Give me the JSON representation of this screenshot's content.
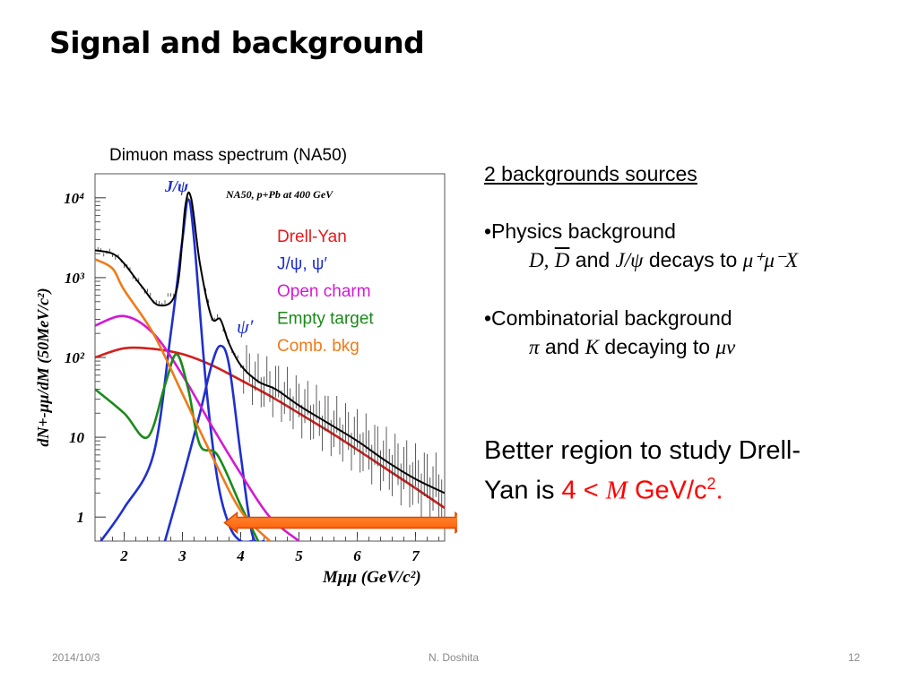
{
  "slide": {
    "title": "Signal and background",
    "footer_date": "2014/10/3",
    "footer_author": "N. Doshita",
    "footer_page": "12"
  },
  "chart_caption": "Dimuon mass spectrum (NA50)",
  "right_panel": {
    "heading": "2 backgrounds sources",
    "physics_bullet": "•Physics background",
    "physics_D": "D,",
    "physics_Dbar": "D",
    "physics_and": "and",
    "physics_jpsi": "J/ψ",
    "physics_decays": "decays to",
    "physics_mumux": "μ⁺μ⁻X",
    "comb_bullet": "•Combinatorial background",
    "comb_pi": "π",
    "comb_and": "and",
    "comb_K": "K",
    "comb_decaying": "decaying to",
    "comb_munu": "μν"
  },
  "conclusion": {
    "line1": "Better region to study Drell-",
    "line2_pre": "Yan is ",
    "line2_4": "4 <",
    "line2_M": "M",
    "line2_gev": "GeV/c",
    "line2_sup": "2",
    "line2_end": "."
  },
  "chart_data": {
    "type": "line",
    "annotation": "NA50, p+Pb at 400 GeV",
    "xlabel": "Mμμ (GeV/c²)",
    "ylabel": "dN+-μμ/dM (50MeV/c²)",
    "x_ticks": [
      "2",
      "3",
      "4",
      "5",
      "6",
      "7"
    ],
    "y_ticks": [
      "1",
      "10",
      "10²",
      "10³",
      "10⁴"
    ],
    "y_scale": "log",
    "xlim": [
      1.5,
      7.5
    ],
    "ylim": [
      0.5,
      20000
    ],
    "peak_labels": {
      "jpsi": "J/ψ",
      "psiprime": "ψ′"
    },
    "legend": [
      {
        "name": "Drell-Yan",
        "color": "#e31a1c"
      },
      {
        "name": "J/ψ, ψ′",
        "color": "#1f2fd0"
      },
      {
        "name": "Open charm",
        "color": "#d31ad3"
      },
      {
        "name": "Empty target",
        "color": "#1a8a1a"
      },
      {
        "name": "Comb. bkg",
        "color": "#f07a18"
      }
    ],
    "series": [
      {
        "name": "Drell-Yan",
        "x": [
          1.5,
          2.0,
          2.5,
          3.0,
          3.5,
          4.0,
          4.5,
          5.0,
          5.5,
          6.0,
          6.5,
          7.0,
          7.5
        ],
        "y": [
          100,
          130,
          128,
          110,
          80,
          52,
          33,
          20,
          12,
          7,
          4,
          2.3,
          1.3
        ]
      },
      {
        "name": "J/ψ",
        "x": [
          1.6,
          2.0,
          2.5,
          2.8,
          3.0,
          3.1,
          3.2,
          3.4,
          3.6,
          3.8,
          4.0,
          4.2
        ],
        "y": [
          0.5,
          1.3,
          6,
          200,
          3000,
          9500,
          3000,
          50,
          3,
          0.8,
          0.5,
          0.5
        ]
      },
      {
        "name": "ψ′",
        "x": [
          2.7,
          3.0,
          3.3,
          3.5,
          3.65,
          3.8,
          4.0,
          4.2,
          4.4
        ],
        "y": [
          0.5,
          3,
          20,
          80,
          140,
          80,
          6,
          0.6,
          0.5
        ]
      },
      {
        "name": "Open charm",
        "x": [
          1.5,
          2.0,
          2.5,
          3.0,
          3.5,
          4.0,
          4.5,
          5.0
        ],
        "y": [
          250,
          330,
          200,
          60,
          14,
          3.5,
          1,
          0.45
        ]
      },
      {
        "name": "Empty target",
        "x": [
          1.5,
          2.0,
          2.4,
          2.7,
          2.9,
          3.1,
          3.3,
          3.6,
          4.0,
          4.3
        ],
        "y": [
          40,
          20,
          10,
          45,
          110,
          40,
          8,
          6,
          1.4,
          0.45
        ]
      },
      {
        "name": "Comb. bkg",
        "x": [
          1.5,
          1.8,
          2.0,
          2.5,
          3.0,
          3.5,
          4.0,
          4.5
        ],
        "y": [
          1700,
          1300,
          700,
          200,
          35,
          6,
          1.2,
          0.5
        ]
      },
      {
        "name": "Data",
        "x": [
          1.5,
          1.8,
          2.0,
          2.3,
          2.6,
          2.9,
          3.05,
          3.15,
          3.3,
          3.5,
          3.65,
          3.8,
          4.0,
          4.3,
          4.6,
          5.0,
          5.5,
          6.0,
          6.5,
          7.0,
          7.5
        ],
        "y": [
          2200,
          2000,
          1500,
          780,
          450,
          700,
          8000,
          9800,
          1500,
          320,
          300,
          150,
          80,
          50,
          40,
          25,
          15,
          9,
          5,
          3,
          2
        ]
      }
    ],
    "highlight_range": [
      4.0,
      7.5
    ]
  }
}
